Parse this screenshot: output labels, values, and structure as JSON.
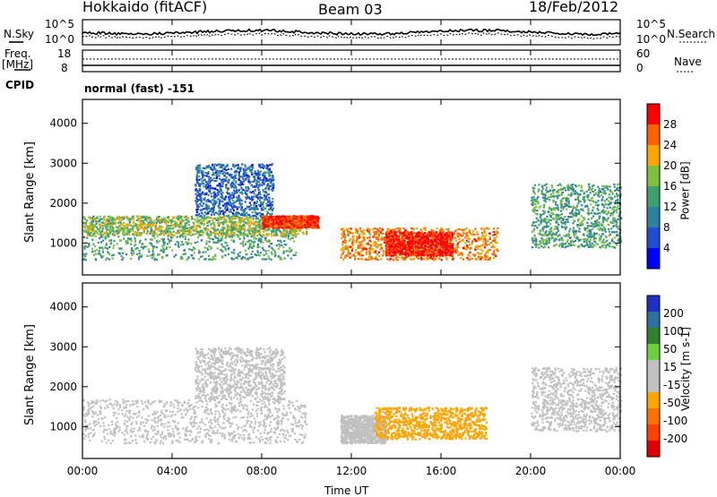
{
  "header": {
    "title": "Hokkaido (fitACF)",
    "beam": "Beam 03",
    "date": "18/Feb/2012"
  },
  "top_panels": {
    "nsky_label": "N.Sky",
    "nsearch_label": "N.Search",
    "noise_ticks": [
      "10^5",
      "10^0"
    ],
    "freq_label_line1": "Freq.",
    "freq_label_line2": "[MHz]",
    "freq_ticks": [
      "18",
      "8"
    ],
    "nave_label": "Nave",
    "nave_ticks": [
      "60",
      "0"
    ],
    "cpid_label": "CPID",
    "cpid_text": "normal (fast) -151"
  },
  "colors": {
    "power_scale": [
      "#0000ff",
      "#1f4fcf",
      "#2f7f9f",
      "#3f9f6f",
      "#7fbf3f",
      "#ffa500",
      "#ff6000",
      "#ff0000"
    ],
    "velocity_scale": [
      "#2030c0",
      "#3070a0",
      "#308030",
      "#6cd040",
      "#c0c0c0",
      "#c0c0c0",
      "#ffa500",
      "#ff7000",
      "#ff4000",
      "#e00000"
    ]
  },
  "chart_data": [
    {
      "type": "heatmap",
      "panel": "power",
      "ylabel": "Slant Range [km]",
      "yticks": [
        "4000",
        "3000",
        "2000",
        "1000"
      ],
      "ylim": [
        200,
        4600
      ],
      "xlim": [
        0,
        24
      ],
      "colorbar_label": "Power [dB]",
      "colorbar_ticks": [
        "28",
        "24",
        "20",
        "16",
        "12",
        "8",
        "4"
      ],
      "colorbar_range": [
        0,
        32
      ],
      "echo_bands": [
        {
          "t0": 0.0,
          "t1": 9.5,
          "r0": 600,
          "r1": 1700,
          "level": 14
        },
        {
          "t0": 0.0,
          "t1": 10.0,
          "r0": 1200,
          "r1": 1700,
          "level": 18
        },
        {
          "t0": 8.0,
          "t1": 10.5,
          "r0": 1400,
          "r1": 1700,
          "level": 28
        },
        {
          "t0": 11.5,
          "t1": 18.5,
          "r0": 600,
          "r1": 1400,
          "level": 24
        },
        {
          "t0": 13.5,
          "t1": 16.5,
          "r0": 700,
          "r1": 1300,
          "level": 30
        },
        {
          "t0": 20.0,
          "t1": 24.0,
          "r0": 900,
          "r1": 2500,
          "level": 14
        },
        {
          "t0": 5.0,
          "t1": 8.5,
          "r0": 1700,
          "r1": 3000,
          "level": 8
        }
      ]
    },
    {
      "type": "heatmap",
      "panel": "velocity",
      "ylabel": "Slant Range [km]",
      "yticks": [
        "4000",
        "3000",
        "2000",
        "1000"
      ],
      "ylim": [
        200,
        4600
      ],
      "xlim": [
        0,
        24
      ],
      "colorbar_label": "Velocity [m s-1]",
      "colorbar_ticks": [
        "200",
        "100",
        "50",
        "15",
        "-15",
        "-50",
        "-100",
        "-200"
      ],
      "colorbar_range": [
        -250,
        250
      ],
      "echo_bands": [
        {
          "t0": 0.0,
          "t1": 10.0,
          "r0": 600,
          "r1": 1700,
          "level": 0
        },
        {
          "t0": 11.5,
          "t1": 13.5,
          "r0": 600,
          "r1": 1300,
          "level": 30
        },
        {
          "t0": 13.0,
          "t1": 18.0,
          "r0": 700,
          "r1": 1500,
          "level": -80
        },
        {
          "t0": 20.0,
          "t1": 24.0,
          "r0": 900,
          "r1": 2500,
          "level": 0
        },
        {
          "t0": 5.0,
          "t1": 9.0,
          "r0": 1700,
          "r1": 3000,
          "level": -30
        }
      ]
    }
  ],
  "xaxis": {
    "label": "Time UT",
    "ticks": [
      "00:00",
      "04:00",
      "08:00",
      "12:00",
      "16:00",
      "20:00",
      "00:00"
    ]
  }
}
